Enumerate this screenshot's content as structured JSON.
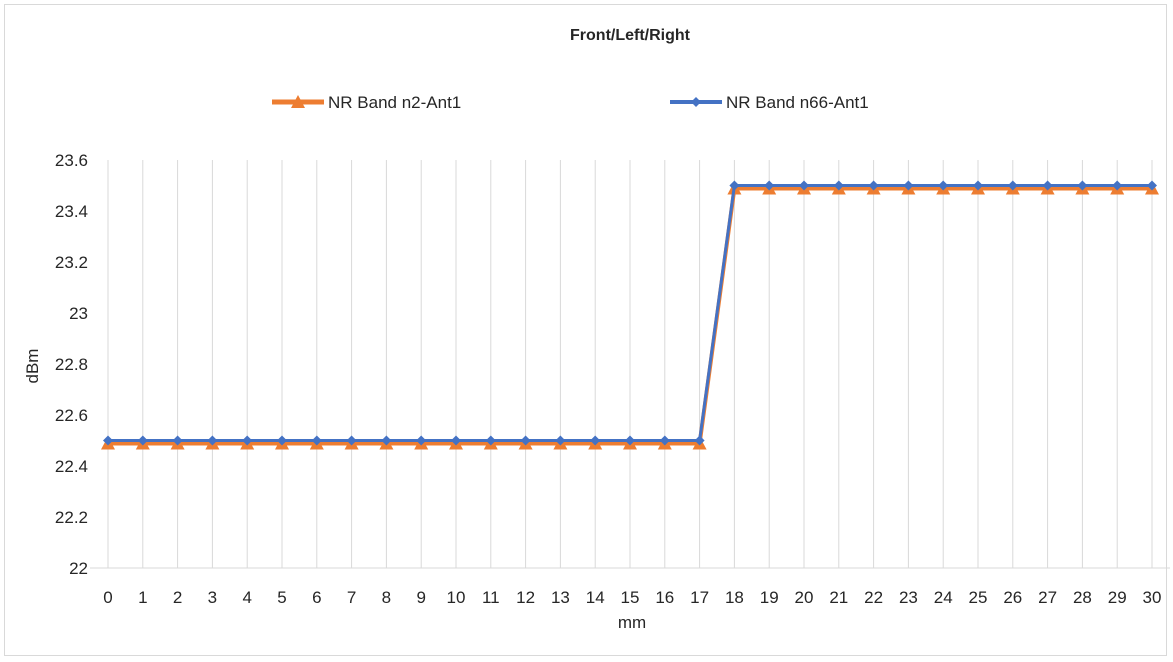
{
  "chart_data": {
    "type": "line",
    "title": "Front/Left/Right",
    "xlabel": "mm",
    "ylabel": "dBm",
    "x": [
      0,
      1,
      2,
      3,
      4,
      5,
      6,
      7,
      8,
      9,
      10,
      11,
      12,
      13,
      14,
      15,
      16,
      17,
      18,
      19,
      20,
      21,
      22,
      23,
      24,
      25,
      26,
      27,
      28,
      29,
      30
    ],
    "y_ticks": [
      "22",
      "22.2",
      "22.4",
      "22.6",
      "22.8",
      "23",
      "23.2",
      "23.4",
      "23.6"
    ],
    "ylim": [
      22,
      23.6
    ],
    "grid": "vertical",
    "legend_position": "top",
    "series": [
      {
        "name": "NR Band n2-Ant1",
        "color": "#ed7d31",
        "marker": "triangle",
        "values": [
          22.5,
          22.5,
          22.5,
          22.5,
          22.5,
          22.5,
          22.5,
          22.5,
          22.5,
          22.5,
          22.5,
          22.5,
          22.5,
          22.5,
          22.5,
          22.5,
          22.5,
          22.5,
          23.5,
          23.5,
          23.5,
          23.5,
          23.5,
          23.5,
          23.5,
          23.5,
          23.5,
          23.5,
          23.5,
          23.5,
          23.5
        ]
      },
      {
        "name": "NR Band n66-Ant1",
        "color": "#4472c4",
        "marker": "diamond",
        "values": [
          22.5,
          22.5,
          22.5,
          22.5,
          22.5,
          22.5,
          22.5,
          22.5,
          22.5,
          22.5,
          22.5,
          22.5,
          22.5,
          22.5,
          22.5,
          22.5,
          22.5,
          22.5,
          23.5,
          23.5,
          23.5,
          23.5,
          23.5,
          23.5,
          23.5,
          23.5,
          23.5,
          23.5,
          23.5,
          23.5,
          23.5
        ]
      }
    ]
  }
}
